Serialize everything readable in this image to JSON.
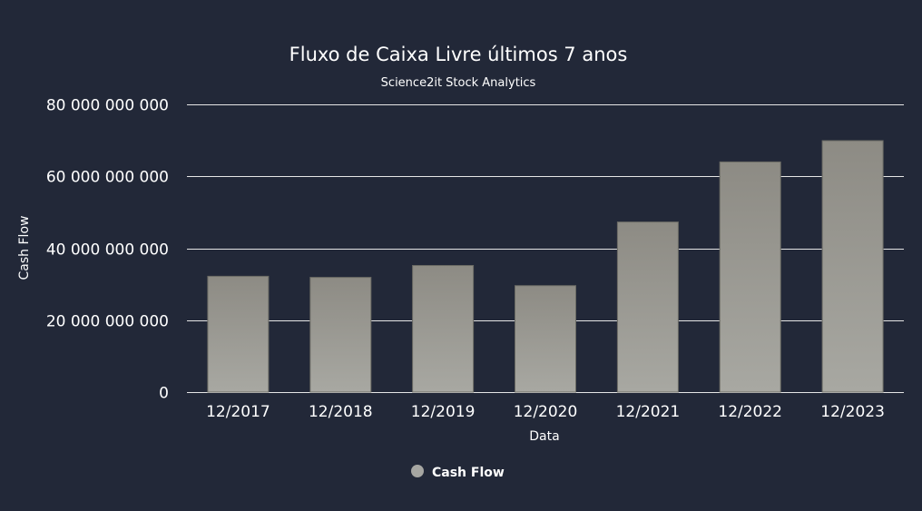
{
  "chart_data": {
    "type": "bar",
    "title": "Fluxo de Caixa Livre últimos 7 anos",
    "subtitle": "Science2it Stock Analytics",
    "xlabel": "Data",
    "ylabel": "Cash Flow",
    "categories": [
      "12/2017",
      "12/2018",
      "12/2019",
      "12/2020",
      "12/2021",
      "12/2022",
      "12/2023"
    ],
    "series": [
      {
        "name": "Cash Flow",
        "values": [
          32200000000,
          31900000000,
          35200000000,
          29600000000,
          47300000000,
          64000000000,
          69900000000
        ]
      }
    ],
    "ylim": [
      0,
      80000000000
    ],
    "yticks": [
      0,
      20000000000,
      40000000000,
      60000000000,
      80000000000
    ],
    "ytick_labels": [
      "0",
      "20 000 000 000",
      "40 000 000 000",
      "60 000 000 000",
      "80 000 000 000"
    ],
    "grid": true,
    "legend_position": "bottom-center",
    "colors": {
      "background": "#222838",
      "bar_top": "#8d8b84",
      "bar_bottom": "#a8a8a2",
      "legend_marker": "#a6a6a2",
      "text": "#ffffff",
      "grid": "#e6e6e6"
    }
  }
}
